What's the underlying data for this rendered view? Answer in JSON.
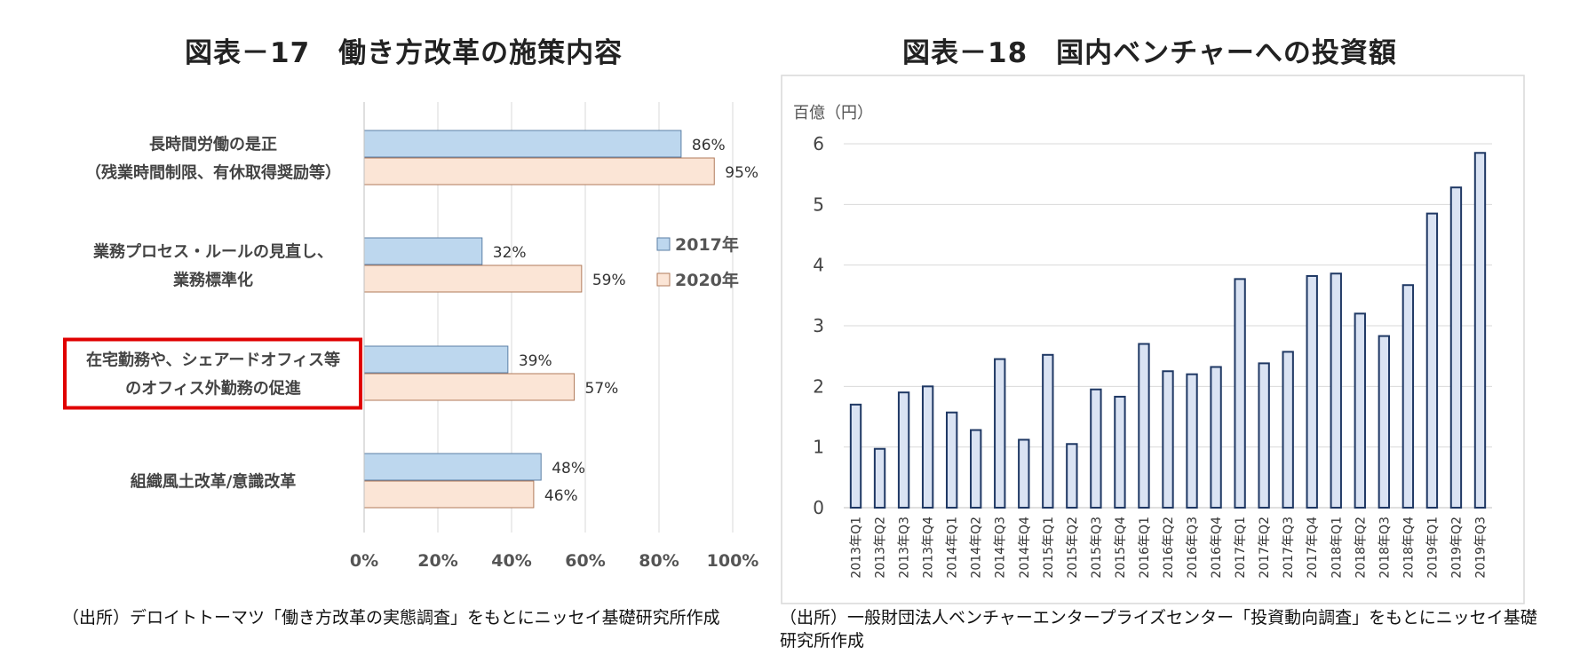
{
  "figure_left": {
    "title": "図表－17　働き方改革の施策内容",
    "source": "（出所）デロイトトーマツ「働き方改革の実態調査」をもとにニッセイ基礎研究所作成"
  },
  "figure_right": {
    "title": "図表－18　国内ベンチャーへの投資額",
    "source": "（出所）一般財団法人ベンチャーエンタープライズセンター「投資動向調査」をもとにニッセイ基礎研究所作成"
  },
  "chart_data": [
    {
      "type": "bar",
      "orientation": "horizontal",
      "title": "図表－17　働き方改革の施策内容",
      "categories": [
        [
          "長時間労働の是正",
          "（残業時間制限、有休取得奨励等）"
        ],
        [
          "業務プロセス・ルールの見直し、",
          "業務標準化"
        ],
        [
          "在宅勤務や、シェアードオフィス等",
          "のオフィス外勤務の促進"
        ],
        [
          "組織風土改革/意識改革"
        ]
      ],
      "highlighted_category_index": 2,
      "series": [
        {
          "name": "2017年",
          "values": [
            86,
            32,
            39,
            48
          ],
          "color": "#bdd7ee",
          "labels": [
            "86%",
            "32%",
            "39%",
            "48%"
          ]
        },
        {
          "name": "2020年",
          "values": [
            95,
            59,
            57,
            46
          ],
          "color": "#fbe5d6",
          "labels": [
            "95%",
            "59%",
            "57%",
            "46%"
          ]
        }
      ],
      "xlim": [
        0,
        100
      ],
      "xticks": [
        "0%",
        "20%",
        "40%",
        "60%",
        "80%",
        "100%"
      ],
      "legend_position": "right",
      "grid": true,
      "highlight_color": "#e00000"
    },
    {
      "type": "bar",
      "title": "図表－18　国内ベンチャーへの投資額",
      "ylabel": "百億（円）",
      "ylim": [
        0,
        6
      ],
      "yticks": [
        "0",
        "1",
        "2",
        "3",
        "4",
        "5",
        "6"
      ],
      "grid": true,
      "color": "#dae3f3",
      "edge_color": "#1f3864",
      "categories": [
        "2013年Q1",
        "2013年Q2",
        "2013年Q3",
        "2013年Q4",
        "2014年Q1",
        "2014年Q2",
        "2014年Q3",
        "2014年Q4",
        "2015年Q1",
        "2015年Q2",
        "2015年Q3",
        "2015年Q4",
        "2016年Q1",
        "2016年Q2",
        "2016年Q3",
        "2016年Q4",
        "2017年Q1",
        "2017年Q2",
        "2017年Q3",
        "2017年Q4",
        "2018年Q1",
        "2018年Q2",
        "2018年Q3",
        "2018年Q4",
        "2019年Q1",
        "2019年Q2",
        "2019年Q3"
      ],
      "values": [
        1.7,
        0.97,
        1.9,
        2.0,
        1.57,
        1.28,
        2.45,
        1.12,
        2.52,
        1.05,
        1.95,
        1.83,
        2.7,
        2.25,
        2.2,
        2.32,
        3.77,
        2.38,
        2.57,
        3.82,
        3.86,
        3.2,
        2.83,
        3.67,
        4.85,
        5.28,
        5.85
      ]
    }
  ]
}
